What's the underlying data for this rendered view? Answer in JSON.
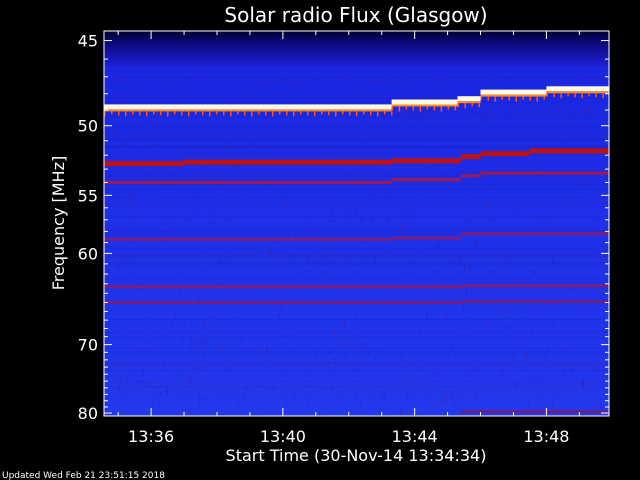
{
  "chart_data": {
    "type": "heatmap",
    "title": "Solar radio Flux (Glasgow)",
    "xlabel": "Start Time (30-Nov-14 13:34:34)",
    "ylabel": "Frequency [MHz]",
    "x_ticks": [
      "13:36",
      "13:40",
      "13:44",
      "13:48"
    ],
    "x_tick_minutes": [
      36,
      40,
      44,
      48
    ],
    "xlim_minutes": [
      34.57,
      49.9
    ],
    "y_ticks": [
      "45",
      "50",
      "55",
      "60",
      "70",
      "80"
    ],
    "y_tick_values": [
      45,
      50,
      55,
      60,
      70,
      80
    ],
    "ylim": [
      44.5,
      80.5
    ],
    "y_scale": "inverted-reciprocal",
    "grid": false,
    "bands": [
      {
        "color": "#fffbe0",
        "segments": [
          [
            34.57,
            48.8
          ],
          [
            43.3,
            48.5
          ],
          [
            45.3,
            48.3
          ],
          [
            46.0,
            47.9
          ],
          [
            48.0,
            47.7
          ],
          [
            49.9,
            47.6
          ]
        ]
      },
      {
        "color": "#c01010",
        "segments": [
          [
            34.57,
            52.6
          ],
          [
            37.0,
            52.5
          ],
          [
            43.3,
            52.4
          ],
          [
            45.4,
            52.1
          ],
          [
            46.0,
            51.9
          ],
          [
            47.5,
            51.7
          ],
          [
            49.9,
            51.6
          ]
        ]
      },
      {
        "color": "#a01850",
        "segments": [
          [
            34.57,
            54.0
          ],
          [
            43.3,
            53.8
          ],
          [
            45.4,
            53.5
          ],
          [
            46.0,
            53.3
          ],
          [
            49.9,
            53.1
          ]
        ]
      },
      {
        "color": "#7a1f7a",
        "segments": [
          [
            34.57,
            58.7
          ],
          [
            43.3,
            58.6
          ],
          [
            45.4,
            58.2
          ],
          [
            49.9,
            58.0
          ]
        ]
      },
      {
        "color": "#7a1f7a",
        "segments": [
          [
            34.57,
            63.3
          ],
          [
            45.4,
            63.2
          ],
          [
            49.9,
            62.6
          ]
        ]
      },
      {
        "color": "#701f80",
        "segments": [
          [
            34.57,
            65.0
          ],
          [
            45.4,
            64.9
          ],
          [
            49.9,
            64.4
          ]
        ]
      },
      {
        "color": "#6a2080",
        "segments": [
          [
            45.4,
            79.8
          ],
          [
            49.9,
            79.5
          ]
        ]
      }
    ]
  },
  "footer": {
    "updated": "Updated Wed Feb 21 23:51:15 2018"
  }
}
